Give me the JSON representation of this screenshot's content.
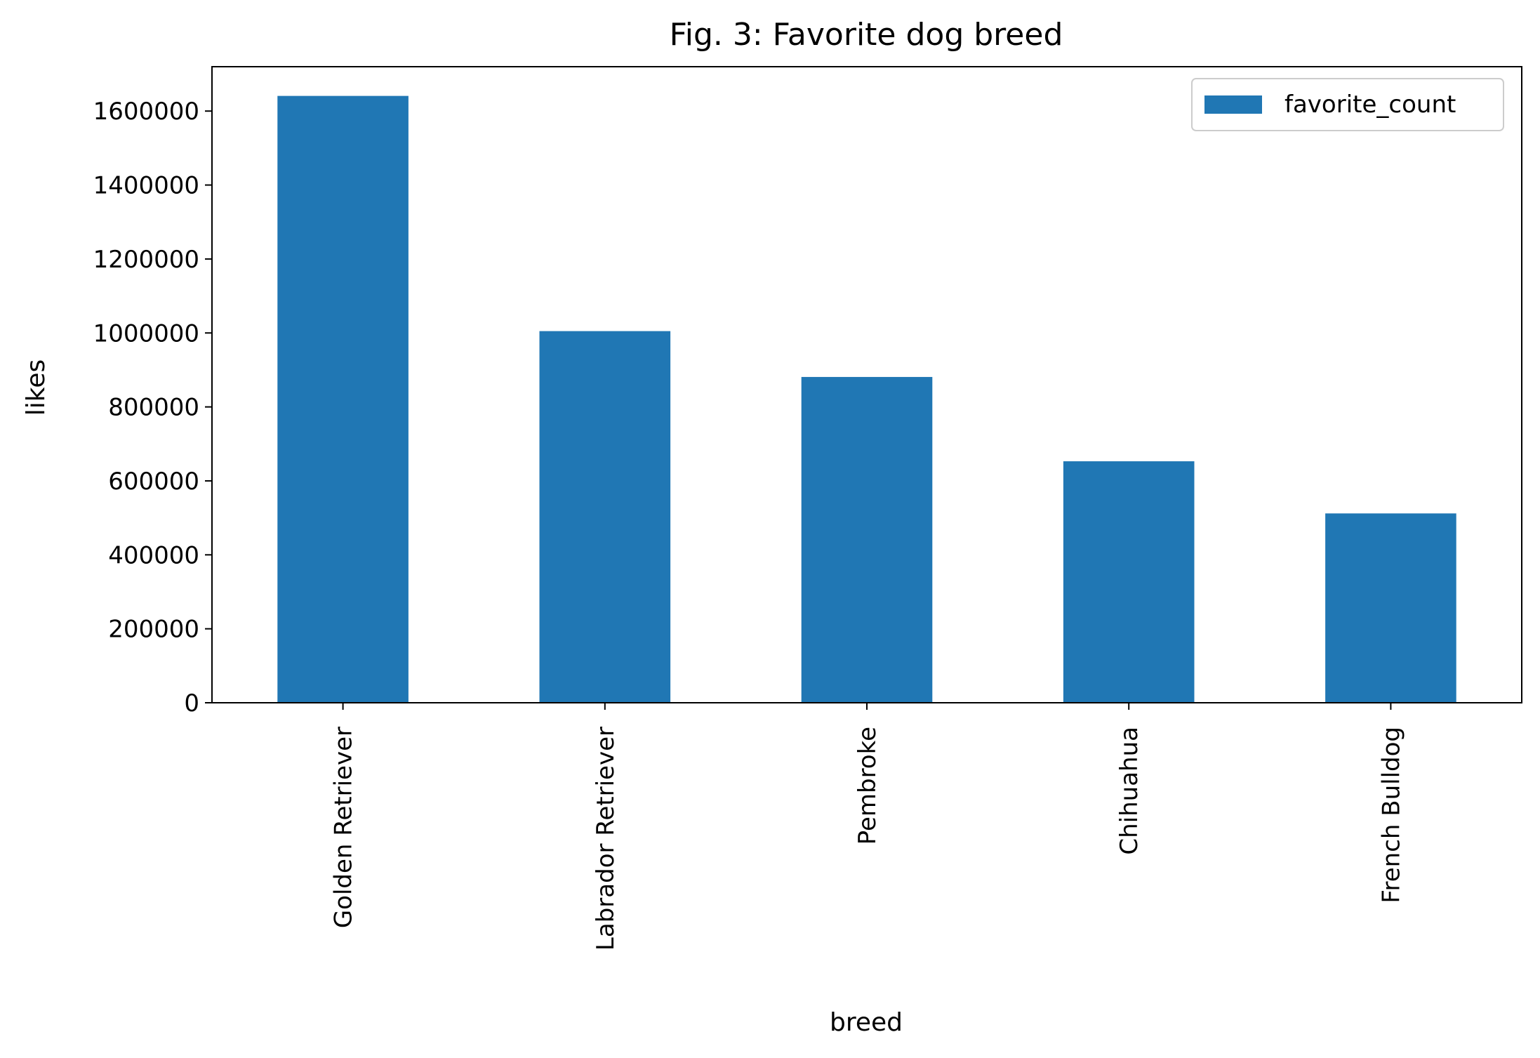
{
  "chart_data": {
    "type": "bar",
    "title": "Fig. 3: Favorite dog breed",
    "xlabel": "breed",
    "ylabel": "likes",
    "categories": [
      "Golden Retriever",
      "Labrador Retriever",
      "Pembroke",
      "Chihuahua",
      "French Bulldog"
    ],
    "series": [
      {
        "name": "favorite_count",
        "values": [
          1641000,
          1005000,
          881000,
          653000,
          512000
        ]
      }
    ],
    "ylim": [
      0,
      1720000
    ],
    "yticks": [
      0,
      200000,
      400000,
      600000,
      800000,
      1000000,
      1200000,
      1400000,
      1600000
    ],
    "ytick_labels": [
      "0",
      "200000",
      "400000",
      "600000",
      "800000",
      "1000000",
      "1200000",
      "1400000",
      "1600000"
    ],
    "grid": false,
    "legend_position": "top-right",
    "colors": {
      "bar": "#2077b4"
    }
  }
}
